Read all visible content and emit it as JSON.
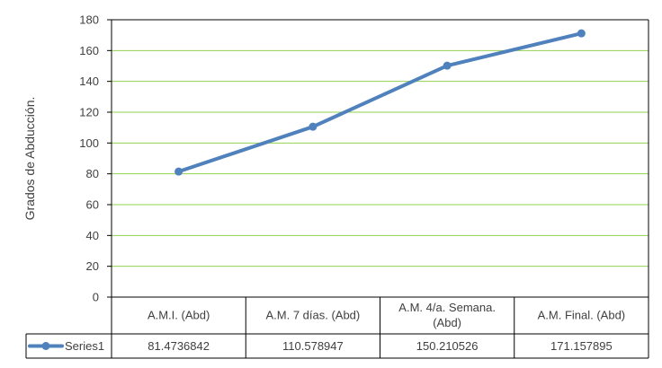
{
  "chart_data": {
    "type": "line",
    "title": "",
    "xlabel": "",
    "ylabel": "Grados de Abducción.",
    "ylim": [
      0,
      180
    ],
    "yticks": [
      0,
      20,
      40,
      60,
      80,
      100,
      120,
      140,
      160,
      180
    ],
    "grid": true,
    "legend": "data-table",
    "categories": [
      [
        "A.M.I. (Abd)"
      ],
      [
        "A.M. 7 días. (Abd)"
      ],
      [
        "A.M. 4/a. Semana.",
        "(Abd)"
      ],
      [
        "A.M. Final. (Abd)"
      ]
    ],
    "series": [
      {
        "name": "Series1",
        "color": "#4f81bd",
        "values": [
          81.4736842,
          110.578947,
          150.210526,
          171.157895
        ],
        "value_labels": [
          "81.4736842",
          "110.578947",
          "150.210526",
          "171.157895"
        ]
      }
    ],
    "grid_color": "#92d050"
  }
}
